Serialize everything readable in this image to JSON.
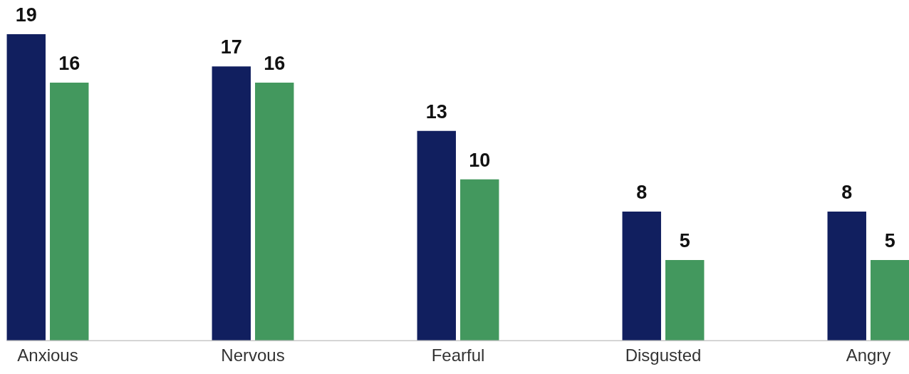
{
  "chart_data": {
    "type": "bar",
    "categories": [
      "Anxious",
      "Nervous",
      "Fearful",
      "Disgusted",
      "Angry"
    ],
    "series": [
      {
        "color": "#111f5f",
        "values": [
          19,
          17,
          13,
          8,
          8
        ]
      },
      {
        "color": "#43985e",
        "values": [
          16,
          16,
          10,
          5,
          5
        ]
      }
    ],
    "data_labels": true,
    "tick_labels": "x"
  }
}
